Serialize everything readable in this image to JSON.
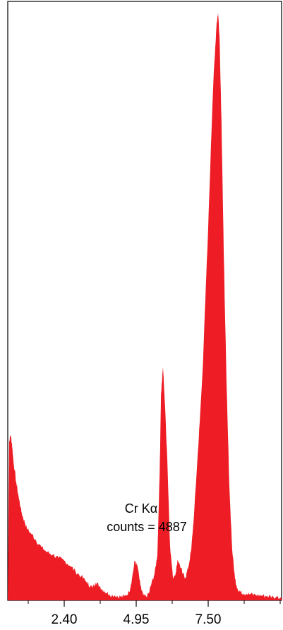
{
  "chart_data": {
    "type": "area",
    "title": "",
    "xlabel": "",
    "ylabel": "",
    "xlim": [
      0.4,
      10.1
    ],
    "ylim": [
      0,
      4887
    ],
    "xticks": [
      2.4,
      4.95,
      7.5
    ],
    "xtick_labels": [
      "2.40",
      "4.95",
      "7.50"
    ],
    "series_color": "#ee1c25",
    "annotation": {
      "line1": "Cr Kα",
      "line2": "counts = 4887"
    },
    "series": [
      {
        "x": [
          0.4,
          0.45,
          0.5,
          0.55,
          0.6,
          0.7,
          0.8,
          0.9,
          1.0,
          1.1,
          1.25,
          1.4,
          1.6,
          1.8,
          2.0,
          2.2,
          2.4,
          2.6,
          2.8,
          3.0,
          3.2,
          3.3,
          3.4,
          3.5,
          3.65,
          3.8,
          4.0,
          4.2,
          4.4,
          4.55,
          4.7,
          4.8,
          4.9,
          5.0,
          5.1,
          5.2,
          5.3,
          5.4,
          5.5,
          5.6,
          5.7,
          5.78,
          5.83,
          5.9,
          5.97,
          6.05,
          6.15,
          6.25,
          6.35,
          6.42,
          6.5,
          6.6,
          6.7,
          6.8,
          6.9,
          7.0,
          7.1,
          7.2,
          7.3,
          7.4,
          7.5,
          7.6,
          7.7,
          7.8,
          7.85,
          7.9,
          7.97,
          8.05,
          8.15,
          8.25,
          8.35,
          8.45,
          8.55,
          8.65,
          8.75,
          8.85,
          9.0,
          9.2,
          9.4,
          9.6,
          9.8,
          10.1
        ],
        "y": [
          0,
          1320,
          1380,
          1300,
          1160,
          980,
          840,
          720,
          650,
          590,
          550,
          500,
          440,
          400,
          380,
          350,
          330,
          290,
          240,
          200,
          150,
          120,
          110,
          150,
          120,
          80,
          50,
          40,
          30,
          35,
          70,
          180,
          330,
          280,
          120,
          40,
          30,
          60,
          150,
          220,
          380,
          1050,
          1720,
          1940,
          1620,
          1180,
          450,
          190,
          230,
          340,
          290,
          220,
          190,
          280,
          420,
          720,
          1100,
          1480,
          1900,
          2500,
          3100,
          3800,
          4400,
          4800,
          4887,
          4700,
          4000,
          2900,
          1800,
          950,
          420,
          180,
          90,
          70,
          60,
          55,
          50,
          45,
          40,
          35,
          30,
          25
        ]
      }
    ]
  }
}
